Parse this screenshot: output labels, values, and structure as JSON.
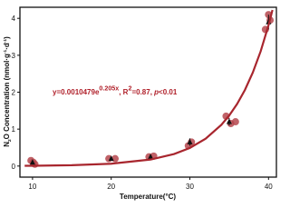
{
  "chart_data": {
    "type": "scatter",
    "xlabel": "Temperature(°C)",
    "ylabel_parts": [
      "N",
      "2",
      "O Concentration (nmol·g",
      "-1",
      "·d",
      "-1",
      ")"
    ],
    "annotation_parts": [
      "y=0.0010479e",
      "0.205x",
      ", R",
      "2",
      "=0.87, ",
      "p",
      "<0.01"
    ],
    "xlim": [
      8.4,
      41
    ],
    "ylim": [
      -0.3,
      4.3
    ],
    "xticks": [
      10,
      20,
      30,
      40
    ],
    "yticks": [
      0,
      1,
      2,
      3,
      4
    ],
    "series": [
      {
        "kind": "points",
        "color": "#b5474e",
        "x": [
          9.8,
          10.1,
          10.3,
          19.7,
          20.5,
          24.8,
          25.4,
          29.8,
          30.2,
          34.6,
          35.2,
          35.8,
          39.6,
          40.0,
          40.2
        ],
        "values": [
          0.15,
          0.1,
          0.05,
          0.2,
          0.2,
          0.25,
          0.27,
          0.55,
          0.65,
          1.35,
          1.15,
          1.2,
          3.7,
          4.1,
          3.95
        ]
      },
      {
        "kind": "means",
        "color": "#111111",
        "x": [
          10,
          20,
          25,
          30,
          35,
          40
        ],
        "values": [
          0.1,
          0.2,
          0.25,
          0.65,
          1.2,
          3.9
        ],
        "errors": [
          0.05,
          0.03,
          0.03,
          0.1,
          0.1,
          0.2
        ]
      },
      {
        "kind": "fit",
        "color": "#a8262e",
        "x": [
          9,
          10,
          15,
          20,
          25,
          28,
          30,
          32,
          34,
          35,
          36,
          37,
          38,
          39,
          40,
          40.5
        ],
        "values": [
          0.0066,
          0.0081,
          0.0227,
          0.0632,
          0.176,
          0.326,
          0.491,
          0.74,
          1.115,
          1.369,
          1.68,
          2.062,
          2.532,
          3.108,
          3.815,
          4.227
        ]
      }
    ]
  }
}
